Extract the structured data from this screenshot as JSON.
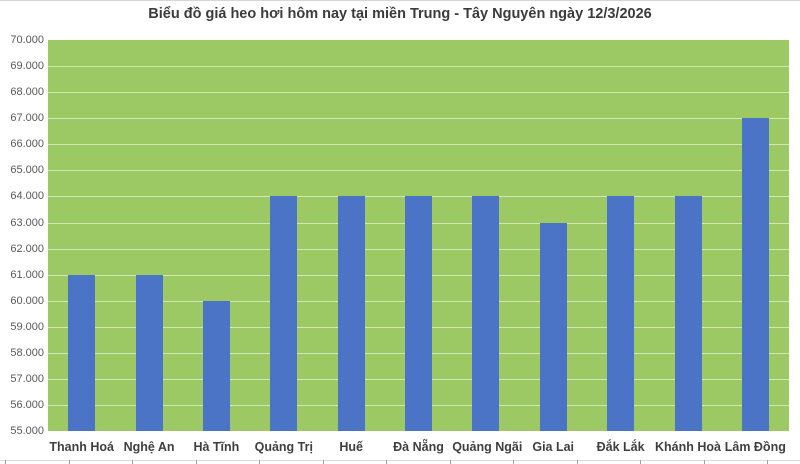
{
  "chart_data": {
    "type": "bar",
    "title": "Biểu đồ giá heo hơi hôm nay tại miền Trung - Tây Nguyên ngày 12/3/2026",
    "categories": [
      "Thanh Hoá",
      "Nghệ An",
      "Hà Tĩnh",
      "Quảng Trị",
      "Huế",
      "Đà Nẵng",
      "Quảng Ngãi",
      "Gia Lai",
      "Đắk Lắk",
      "Khánh Hoà",
      "Lâm Đồng"
    ],
    "values": [
      61000,
      61000,
      60000,
      64000,
      64000,
      64000,
      64000,
      63000,
      64000,
      64000,
      67000
    ],
    "xlabel": "",
    "ylabel": "",
    "ylim": [
      55000,
      70000
    ],
    "ytick_step": 1000,
    "ytick_labels": [
      "55.000",
      "56.000",
      "57.000",
      "58.000",
      "59.000",
      "60.000",
      "61.000",
      "62.000",
      "63.000",
      "64.000",
      "65.000",
      "66.000",
      "67.000",
      "68.000",
      "69.000",
      "70.000"
    ],
    "grid": true,
    "legend_position": "none",
    "colors": {
      "bar": "#4b74c6",
      "plot_background": "#9cc963",
      "gridline": "rgba(255,255,255,0.55)",
      "title_text": "#3b3b3b",
      "axis_text": "#595959",
      "category_text": "#3f3f3f"
    }
  }
}
